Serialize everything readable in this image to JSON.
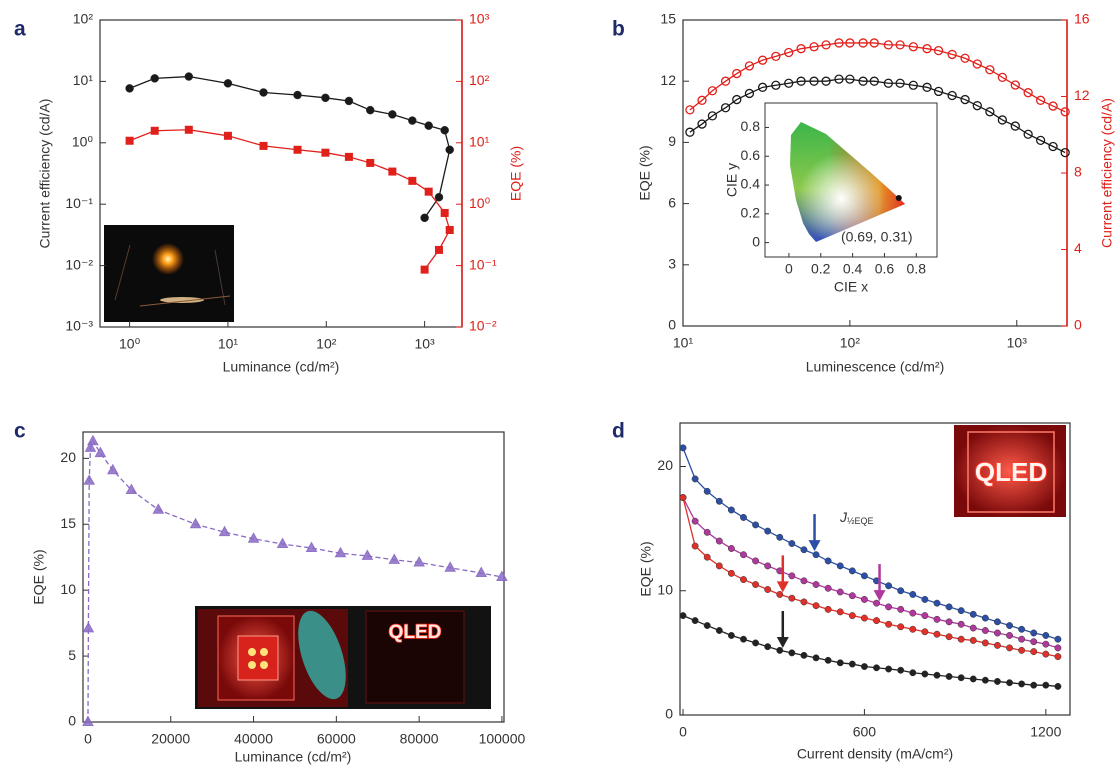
{
  "chart_data": [
    {
      "panel": "a",
      "type": "line",
      "xlabel": "Luminance (cd/m²)",
      "ylabel": "Current efficiency (cd/A)",
      "y2label": "EQE (%)",
      "xscale": "log",
      "yscale": "log",
      "y2scale": "log",
      "xlim": [
        0.5,
        2400
      ],
      "ylim": [
        0.001,
        100
      ],
      "y2lim": [
        0.01,
        1000
      ],
      "xticks": [
        {
          "value": 1,
          "label": "10⁰"
        },
        {
          "value": 10,
          "label": "10¹"
        },
        {
          "value": 100,
          "label": "10²"
        },
        {
          "value": 1000,
          "label": "10³"
        }
      ],
      "yticks": [
        {
          "value": 0.001,
          "label": "10⁻³"
        },
        {
          "value": 0.01,
          "label": "10⁻²"
        },
        {
          "value": 0.1,
          "label": "10⁻¹"
        },
        {
          "value": 1,
          "label": "10⁰"
        },
        {
          "value": 10,
          "label": "10¹"
        },
        {
          "value": 100,
          "label": "10²"
        }
      ],
      "y2ticks": [
        {
          "value": 0.01,
          "label": "10⁻²"
        },
        {
          "value": 0.1,
          "label": "10⁻¹"
        },
        {
          "value": 1,
          "label": "10⁰"
        },
        {
          "value": 10,
          "label": "10¹"
        },
        {
          "value": 100,
          "label": "10²"
        },
        {
          "value": 1000,
          "label": "10³"
        }
      ],
      "y2color": "#e0201b",
      "x": [
        1,
        1.8,
        4,
        10,
        23,
        51,
        98,
        170,
        280,
        470,
        750,
        1100,
        1600,
        1800,
        1400,
        1000
      ],
      "series": [
        {
          "color": "#1a1a1a",
          "marker": "circle",
          "values": [
            7.7,
            11.2,
            12,
            9.3,
            6.6,
            6,
            5.4,
            4.8,
            3.4,
            2.9,
            2.3,
            1.9,
            1.6,
            0.77,
            0.13,
            0.06
          ]
        },
        {
          "color": "#e0201b",
          "marker": "square",
          "axis": "y2",
          "values": [
            10.8,
            15.7,
            16.3,
            13,
            8.9,
            7.7,
            6.9,
            5.9,
            4.7,
            3.4,
            2.4,
            1.6,
            0.72,
            0.38,
            0.18,
            0.086
          ]
        }
      ]
    },
    {
      "panel": "b",
      "type": "line",
      "xlabel": "Luminescence (cd/m²)",
      "ylabel": "EQE (%)",
      "y2label": "Current efficiency (cd/A)",
      "xscale": "log",
      "xlim": [
        10,
        2000
      ],
      "ylim": [
        0,
        15
      ],
      "y2lim": [
        0,
        16
      ],
      "xticks": [
        {
          "value": 10,
          "label": "10¹"
        },
        {
          "value": 100,
          "label": "10²"
        },
        {
          "value": 1000,
          "label": "10³"
        }
      ],
      "yticks": [
        0,
        3,
        6,
        9,
        12,
        15
      ],
      "y2ticks": [
        0,
        4,
        8,
        12,
        16
      ],
      "y2color": "#e0201b",
      "x": [
        11,
        13,
        15,
        18,
        21,
        25,
        30,
        36,
        43,
        51,
        61,
        72,
        86,
        100,
        120,
        140,
        170,
        200,
        240,
        290,
        340,
        410,
        490,
        580,
        690,
        820,
        980,
        1170,
        1390,
        1650,
        1950
      ],
      "series": [
        {
          "color": "#1a1a1a",
          "marker": "open-circle",
          "values": [
            9.5,
            9.9,
            10.3,
            10.7,
            11.1,
            11.4,
            11.7,
            11.8,
            11.9,
            12.0,
            12.0,
            12.0,
            12.1,
            12.1,
            12.0,
            12.0,
            11.9,
            11.9,
            11.8,
            11.7,
            11.5,
            11.3,
            11.1,
            10.8,
            10.5,
            10.1,
            9.8,
            9.4,
            9.1,
            8.8,
            8.5
          ]
        },
        {
          "color": "#e0201b",
          "marker": "open-circle",
          "axis": "y2",
          "values": [
            11.3,
            11.8,
            12.3,
            12.8,
            13.2,
            13.6,
            13.9,
            14.1,
            14.3,
            14.5,
            14.6,
            14.7,
            14.8,
            14.8,
            14.8,
            14.8,
            14.7,
            14.7,
            14.6,
            14.5,
            14.4,
            14.2,
            14.0,
            13.7,
            13.4,
            13.0,
            12.6,
            12.2,
            11.8,
            11.5,
            11.2
          ]
        }
      ],
      "inset": {
        "xlabel": "CIE x",
        "ylabel": "CIE y",
        "xlim": [
          -0.15,
          0.93
        ],
        "ylim": [
          -0.1,
          0.97
        ],
        "xticks": [
          0,
          0.2,
          0.4,
          0.6,
          0.8
        ],
        "yticks": [
          0,
          0.2,
          0.4,
          0.6,
          0.8
        ],
        "point": [
          0.69,
          0.31
        ],
        "point_label": "(0.69, 0.31)"
      }
    },
    {
      "panel": "c",
      "type": "line",
      "xlabel": "Luminance (cd/m²)",
      "ylabel": "EQE (%)",
      "xlim": [
        -1200,
        100500
      ],
      "ylim": [
        0,
        22
      ],
      "xticks": [
        0,
        20000,
        40000,
        60000,
        80000,
        100000
      ],
      "yticks": [
        0,
        5,
        10,
        15,
        20
      ],
      "x": [
        0,
        100,
        300,
        600,
        1200,
        3000,
        6000,
        10500,
        17000,
        26000,
        33000,
        40000,
        47000,
        54000,
        61000,
        67500,
        74000,
        80000,
        87500,
        95000,
        100000
      ],
      "series": [
        {
          "color": "#8a6bc4",
          "marker": "triangle",
          "dashed": true,
          "values": [
            0,
            7.1,
            18.3,
            20.8,
            21.3,
            20.4,
            19.1,
            17.6,
            16.1,
            15.0,
            14.4,
            13.9,
            13.5,
            13.2,
            12.8,
            12.6,
            12.3,
            12.1,
            11.7,
            11.3,
            11.0
          ]
        }
      ],
      "photo_text": "QLED"
    },
    {
      "panel": "d",
      "type": "line",
      "xlabel": "Current density (mA/cm²)",
      "ylabel": "EQE (%)",
      "xlim": [
        -10,
        1280
      ],
      "ylim": [
        0,
        23.5
      ],
      "xticks": [
        0,
        600,
        1200
      ],
      "yticks": [
        0,
        10,
        20
      ],
      "x": [
        0,
        40,
        80,
        120,
        160,
        200,
        240,
        280,
        320,
        360,
        400,
        440,
        480,
        520,
        560,
        600,
        640,
        680,
        720,
        760,
        800,
        840,
        880,
        920,
        960,
        1000,
        1040,
        1080,
        1120,
        1160,
        1200,
        1240
      ],
      "series": [
        {
          "color": "#2c4fa6",
          "marker": "circle",
          "j_half": 435,
          "values": [
            21.5,
            19.0,
            18.0,
            17.2,
            16.5,
            15.9,
            15.3,
            14.8,
            14.3,
            13.8,
            13.3,
            12.9,
            12.4,
            12.0,
            11.6,
            11.2,
            10.8,
            10.4,
            10.0,
            9.7,
            9.3,
            9.0,
            8.7,
            8.4,
            8.1,
            7.8,
            7.5,
            7.2,
            6.9,
            6.6,
            6.4,
            6.1
          ]
        },
        {
          "color": "#b0389c",
          "marker": "circle",
          "j_half": 650,
          "values": [
            17.5,
            15.6,
            14.7,
            14.0,
            13.4,
            12.9,
            12.4,
            12.0,
            11.6,
            11.2,
            10.8,
            10.5,
            10.2,
            9.9,
            9.6,
            9.3,
            9.0,
            8.7,
            8.5,
            8.2,
            8.0,
            7.7,
            7.5,
            7.3,
            7.0,
            6.8,
            6.6,
            6.4,
            6.1,
            5.9,
            5.7,
            5.4
          ]
        },
        {
          "color": "#e0302a",
          "marker": "circle",
          "j_half": 330,
          "values": [
            17.5,
            13.6,
            12.7,
            12.0,
            11.4,
            10.9,
            10.5,
            10.1,
            9.7,
            9.4,
            9.1,
            8.8,
            8.5,
            8.3,
            8.0,
            7.8,
            7.6,
            7.3,
            7.1,
            6.9,
            6.7,
            6.5,
            6.3,
            6.1,
            6.0,
            5.8,
            5.6,
            5.4,
            5.2,
            5.1,
            4.9,
            4.7
          ]
        },
        {
          "color": "#222222",
          "marker": "circle",
          "j_half": 330,
          "values": [
            8.0,
            7.6,
            7.2,
            6.8,
            6.4,
            6.1,
            5.8,
            5.5,
            5.2,
            5.0,
            4.8,
            4.6,
            4.4,
            4.2,
            4.1,
            3.9,
            3.8,
            3.7,
            3.6,
            3.4,
            3.3,
            3.2,
            3.1,
            3.0,
            2.9,
            2.8,
            2.7,
            2.6,
            2.5,
            2.4,
            2.4,
            2.3
          ]
        }
      ],
      "annotation": {
        "text": "J",
        "subscript": "½EQE"
      },
      "photo_text": "QLED"
    }
  ]
}
